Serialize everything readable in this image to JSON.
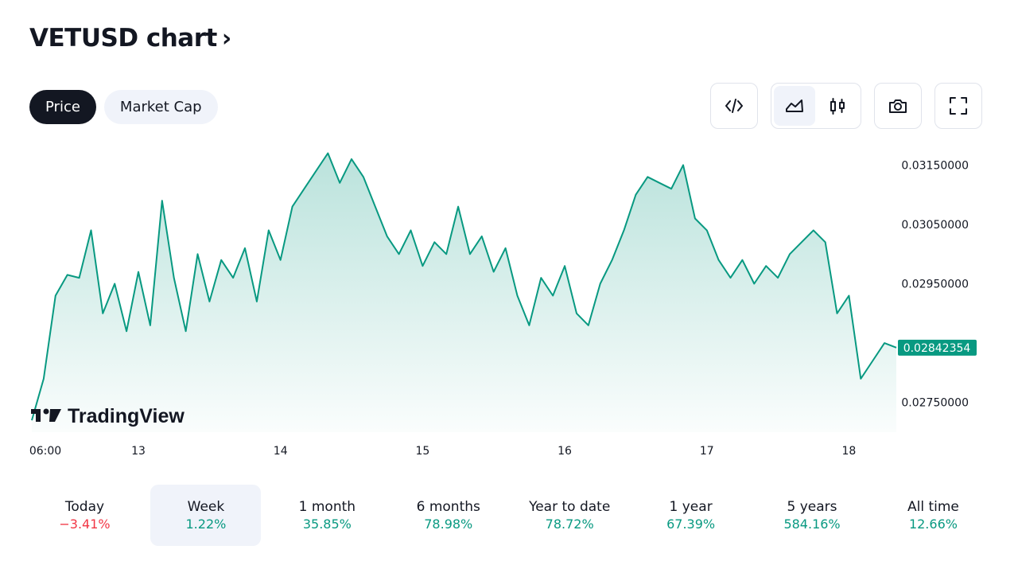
{
  "title": "VETUSD chart",
  "title_chevron": "›",
  "toggle": {
    "price": "Price",
    "market_cap": "Market Cap"
  },
  "toolbar": {
    "embed": "code-icon",
    "area": "area-chart-icon",
    "candles": "candlestick-icon",
    "snapshot": "camera-icon",
    "fullscreen": "fullscreen-icon"
  },
  "watermark": "TradingView",
  "colors": {
    "line": "#089981",
    "negative": "#f23645",
    "text": "#131722",
    "active_bg": "#f0f3fa"
  },
  "periods": [
    {
      "label": "Today",
      "change": "−3.41%",
      "dir": "down"
    },
    {
      "label": "Week",
      "change": "1.22%",
      "dir": "up"
    },
    {
      "label": "1 month",
      "change": "35.85%",
      "dir": "up"
    },
    {
      "label": "6 months",
      "change": "78.98%",
      "dir": "up"
    },
    {
      "label": "Year to date",
      "change": "78.72%",
      "dir": "up"
    },
    {
      "label": "1 year",
      "change": "67.39%",
      "dir": "up"
    },
    {
      "label": "5 years",
      "change": "584.16%",
      "dir": "up"
    },
    {
      "label": "All time",
      "change": "12.66%",
      "dir": "up"
    }
  ],
  "chart_data": {
    "type": "area",
    "title": "",
    "xlabel": "",
    "ylabel": "",
    "x_ticks": [
      "06:00",
      "13",
      "14",
      "15",
      "16",
      "17",
      "18"
    ],
    "y_ticks": [
      "0.03150000",
      "0.03050000",
      "0.02950000",
      "0.02750000"
    ],
    "ylim": [
      0.027,
      0.0318
    ],
    "last_value_label": "0.02842354",
    "last_value": 0.02842354,
    "x": [
      "12 06:00",
      "12 08:00",
      "12 10:00",
      "12 12:00",
      "12 14:00",
      "12 16:00",
      "12 18:00",
      "12 20:00",
      "12 22:00",
      "13 00:00",
      "13 02:00",
      "13 04:00",
      "13 06:00",
      "13 08:00",
      "13 10:00",
      "13 12:00",
      "13 14:00",
      "13 16:00",
      "13 18:00",
      "13 20:00",
      "13 22:00",
      "14 00:00",
      "14 02:00",
      "14 04:00",
      "14 06:00",
      "14 08:00",
      "14 10:00",
      "14 12:00",
      "14 14:00",
      "14 16:00",
      "14 18:00",
      "14 20:00",
      "14 22:00",
      "15 00:00",
      "15 02:00",
      "15 04:00",
      "15 06:00",
      "15 08:00",
      "15 10:00",
      "15 12:00",
      "15 14:00",
      "15 16:00",
      "15 18:00",
      "15 20:00",
      "15 22:00",
      "16 00:00",
      "16 02:00",
      "16 04:00",
      "16 06:00",
      "16 08:00",
      "16 10:00",
      "16 12:00",
      "16 14:00",
      "16 16:00",
      "16 18:00",
      "16 20:00",
      "16 22:00",
      "17 00:00",
      "17 02:00",
      "17 04:00",
      "17 06:00",
      "17 08:00",
      "17 10:00",
      "17 12:00",
      "17 14:00",
      "17 16:00",
      "17 18:00",
      "17 20:00",
      "17 22:00",
      "18 00:00",
      "18 02:00",
      "18 04:00",
      "18 06:00",
      "18 08:00"
    ],
    "values": [
      0.0272,
      0.0279,
      0.0293,
      0.02965,
      0.0296,
      0.0304,
      0.029,
      0.0295,
      0.0287,
      0.0297,
      0.0288,
      0.0309,
      0.0296,
      0.0287,
      0.03,
      0.0292,
      0.0299,
      0.0296,
      0.0301,
      0.0292,
      0.0304,
      0.0299,
      0.0308,
      0.0311,
      0.0314,
      0.0317,
      0.0312,
      0.0316,
      0.0313,
      0.0308,
      0.0303,
      0.03,
      0.0304,
      0.0298,
      0.0302,
      0.03,
      0.0308,
      0.03,
      0.0303,
      0.0297,
      0.0301,
      0.0293,
      0.0288,
      0.0296,
      0.0293,
      0.0298,
      0.029,
      0.0288,
      0.0295,
      0.0299,
      0.0304,
      0.031,
      0.0313,
      0.0312,
      0.0311,
      0.0315,
      0.0306,
      0.0304,
      0.0299,
      0.0296,
      0.0299,
      0.0295,
      0.0298,
      0.0296,
      0.03,
      0.0302,
      0.0304,
      0.0302,
      0.029,
      0.0293,
      0.0279,
      0.0282,
      0.0285,
      0.02842354
    ]
  }
}
